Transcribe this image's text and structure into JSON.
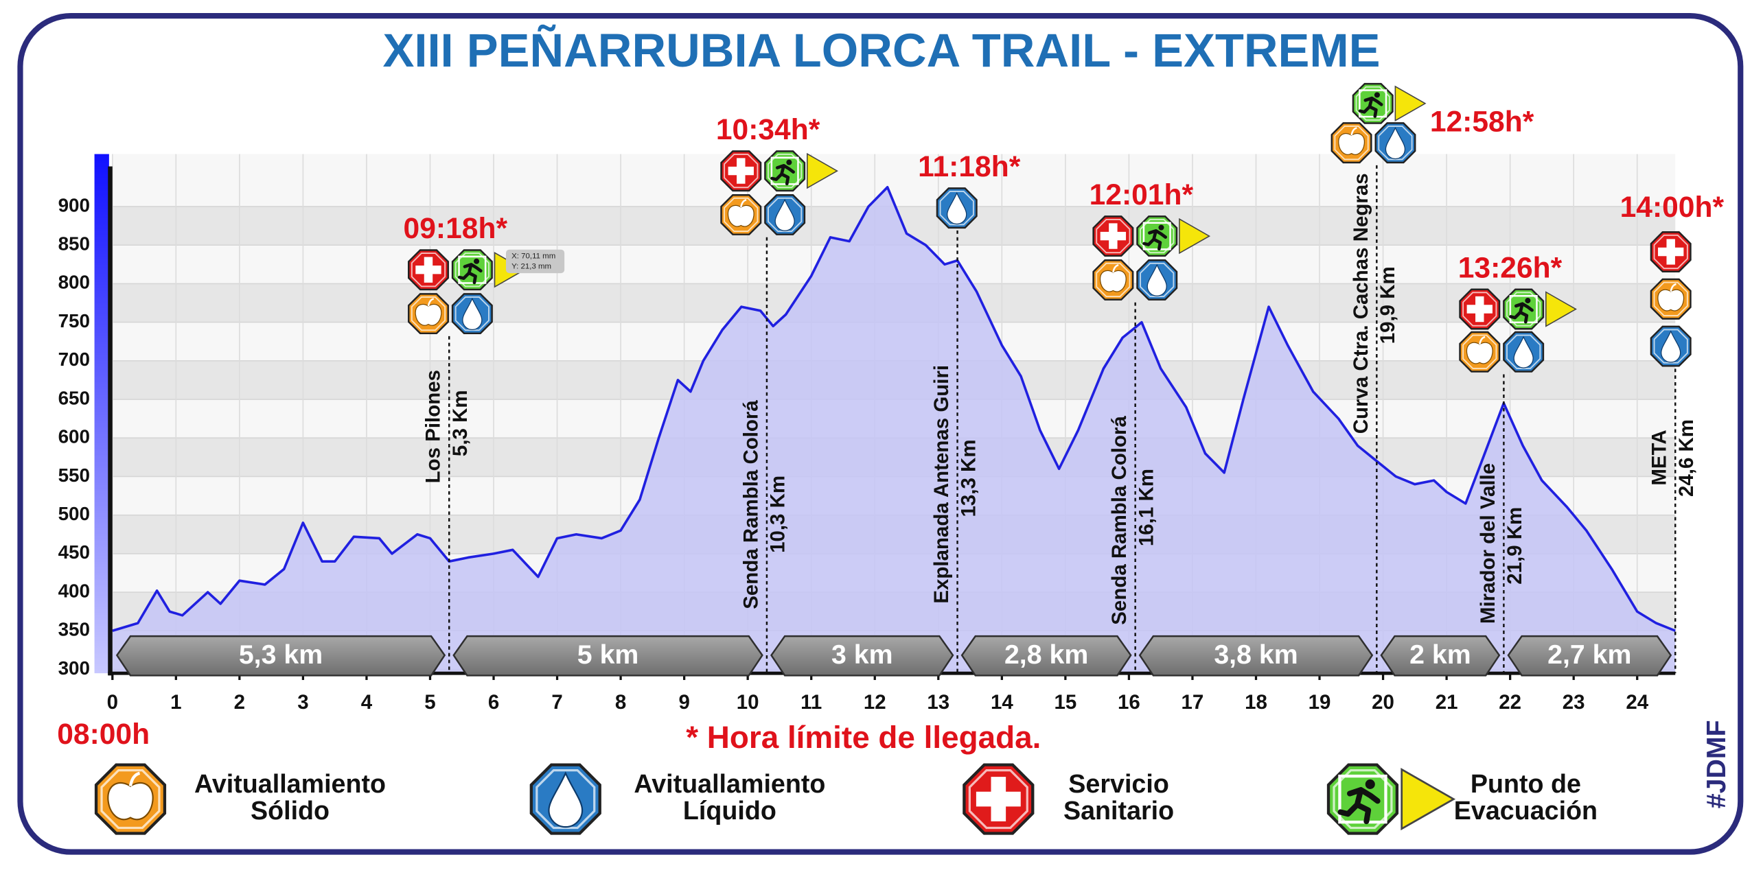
{
  "chart_data": {
    "type": "area",
    "title": "XIII PEÑARRUBIA LORCA TRAIL - EXTREME",
    "start_time": "08:00h",
    "footnote": "* Hora límite de llegada.",
    "signature": "#JDMF",
    "tooltip": [
      "X: 70,11 mm",
      "Y: 21,3 mm"
    ],
    "color": "#2020e0",
    "fill_color": "#c4c4f6",
    "grid": true,
    "xlim": [
      0,
      24.6
    ],
    "ylim": [
      295,
      968
    ],
    "xticks": [
      0,
      1,
      2,
      3,
      4,
      5,
      6,
      7,
      8,
      9,
      10,
      11,
      12,
      13,
      14,
      15,
      16,
      17,
      18,
      19,
      20,
      21,
      22,
      23,
      24
    ],
    "yticks": [
      300,
      350,
      400,
      450,
      500,
      550,
      600,
      650,
      700,
      750,
      800,
      850,
      900
    ],
    "x": [
      0,
      0.4,
      0.7,
      0.9,
      1.1,
      1.5,
      1.7,
      2.0,
      2.4,
      2.7,
      3.0,
      3.3,
      3.5,
      3.8,
      4.2,
      4.4,
      4.8,
      5.0,
      5.3,
      5.6,
      6.0,
      6.3,
      6.7,
      7.0,
      7.3,
      7.7,
      8.0,
      8.3,
      8.6,
      8.9,
      9.1,
      9.3,
      9.6,
      9.9,
      10.2,
      10.4,
      10.6,
      11.0,
      11.3,
      11.6,
      11.9,
      12.2,
      12.5,
      12.8,
      13.1,
      13.3,
      13.6,
      14.0,
      14.3,
      14.6,
      14.9,
      15.2,
      15.6,
      15.9,
      16.2,
      16.5,
      16.9,
      17.2,
      17.5,
      17.8,
      18.0,
      18.2,
      18.5,
      18.9,
      19.3,
      19.6,
      19.9,
      20.2,
      20.5,
      20.8,
      21.0,
      21.3,
      21.6,
      21.9,
      22.2,
      22.5,
      22.9,
      23.2,
      23.6,
      24.0,
      24.3,
      24.6
    ],
    "values": [
      350,
      360,
      402,
      375,
      370,
      400,
      385,
      415,
      410,
      430,
      490,
      440,
      440,
      472,
      470,
      450,
      475,
      470,
      440,
      445,
      450,
      455,
      420,
      470,
      475,
      470,
      480,
      520,
      600,
      675,
      660,
      700,
      740,
      770,
      765,
      745,
      760,
      810,
      860,
      855,
      900,
      925,
      865,
      850,
      825,
      830,
      790,
      720,
      680,
      610,
      560,
      610,
      690,
      730,
      750,
      690,
      640,
      580,
      555,
      650,
      710,
      770,
      720,
      660,
      625,
      590,
      570,
      550,
      540,
      545,
      530,
      515,
      580,
      645,
      590,
      545,
      510,
      480,
      430,
      375,
      360,
      350
    ],
    "checkpoints": [
      {
        "name": "Los Pilones",
        "km_label": "5,3 Km",
        "x": 5.3,
        "time": "09:18h*",
        "icons": [
          2,
          3,
          0,
          1
        ]
      },
      {
        "name": "Senda Rambla Colorá",
        "km_label": "10,3 Km",
        "x": 10.3,
        "time": "10:34h*",
        "icons": [
          2,
          3,
          0,
          1
        ]
      },
      {
        "name": "Explanada Antenas Guiri",
        "km_label": "13,3 Km",
        "x": 13.3,
        "time": "11:18h*",
        "icons": [
          1
        ]
      },
      {
        "name": "Senda Rambla Colorá",
        "km_label": "16,1 Km",
        "x": 16.1,
        "time": "12:01h*",
        "icons": [
          2,
          3,
          0,
          1
        ]
      },
      {
        "name": "Curva Ctra. Cachas Negras",
        "km_label": "19,9 Km",
        "x": 19.9,
        "time": "12:58h*",
        "icons": [
          3,
          0,
          1
        ]
      },
      {
        "name": "Mirador del Valle",
        "km_label": "21,9 Km",
        "x": 21.9,
        "time": "13:26h*",
        "icons": [
          2,
          3,
          0,
          1
        ]
      },
      {
        "name": "META",
        "km_label": "24,6 Km",
        "x": 24.6,
        "time": "14:00h*",
        "icons": [
          2,
          0,
          1
        ]
      }
    ],
    "segments": [
      "5,3 km",
      "5 km",
      "3 km",
      "2,8 km",
      "3,8 km",
      "2 km",
      "2,7 km"
    ],
    "legend": [
      {
        "lines": [
          "Avituallamiento",
          "Sólido"
        ],
        "color": "#f39a1e"
      },
      {
        "lines": [
          "Avituallamiento",
          "Líquido"
        ],
        "color": "#2a7bc4"
      },
      {
        "lines": [
          "Servicio",
          "Sanitario"
        ],
        "color": "#e01b1b"
      },
      {
        "lines": [
          "Punto de",
          "Evacuación"
        ],
        "color": "#5ed13a"
      }
    ]
  }
}
